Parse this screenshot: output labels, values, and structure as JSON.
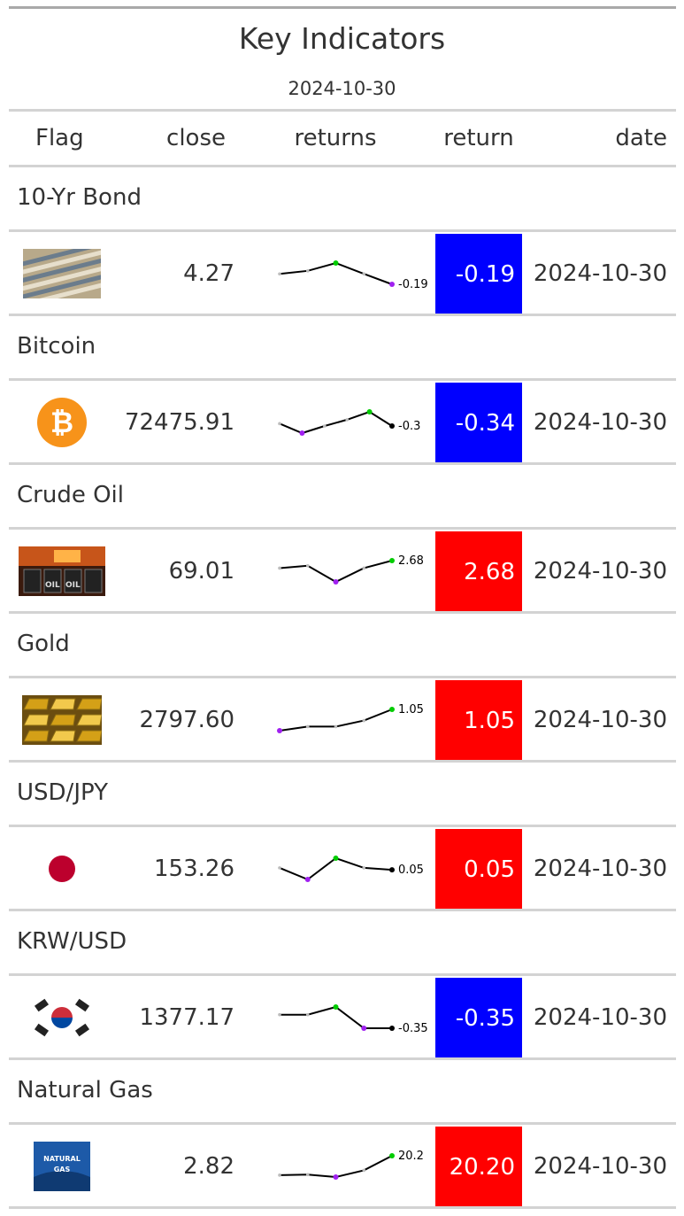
{
  "title": "Key Indicators",
  "subtitle": "2024-10-30",
  "columns": [
    "Flag",
    "close",
    "returns",
    "return",
    "date"
  ],
  "colors": {
    "positive": "#ff0000",
    "negative": "#0000ff",
    "min_point": "#a020f0",
    "max_point": "#00cc00",
    "last_point": "#000000"
  },
  "chart_data": {
    "type": "table",
    "rows": [
      {
        "group": "10-Yr Bond",
        "flag_icon": "bond-certificates-icon",
        "close": "4.27",
        "returns": [
          0.05,
          0.12,
          0.3,
          0.05,
          -0.19
        ],
        "returns_label": "-0.19",
        "return": "-0.19",
        "date": "2024-10-30"
      },
      {
        "group": "Bitcoin",
        "flag_icon": "bitcoin-icon",
        "close": "72475.91",
        "returns": [
          0.0,
          -1.2,
          -0.3,
          0.5,
          1.5,
          -0.3
        ],
        "returns_label": "-0.3",
        "return": "-0.34",
        "date": "2024-10-30"
      },
      {
        "group": "Crude Oil",
        "flag_icon": "oil-barrels-icon",
        "close": "69.01",
        "returns": [
          0.5,
          1.2,
          -3.5,
          0.5,
          2.68
        ],
        "returns_label": "2.68",
        "return": "2.68",
        "date": "2024-10-30"
      },
      {
        "group": "Gold",
        "flag_icon": "gold-bars-icon",
        "close": "2797.60",
        "returns": [
          0.0,
          0.2,
          0.2,
          0.5,
          1.05
        ],
        "returns_label": "1.05",
        "return": "1.05",
        "date": "2024-10-30"
      },
      {
        "group": "USD/JPY",
        "flag_icon": "japan-flag-icon",
        "close": "153.26",
        "returns": [
          0.1,
          -0.2,
          0.35,
          0.1,
          0.05
        ],
        "returns_label": "0.05",
        "return": "0.05",
        "date": "2024-10-30"
      },
      {
        "group": "KRW/USD",
        "flag_icon": "korea-flag-icon",
        "close": "1377.17",
        "returns": [
          0.0,
          0.0,
          0.2,
          -0.35,
          -0.35
        ],
        "returns_label": "-0.35",
        "return": "-0.35",
        "date": "2024-10-30"
      },
      {
        "group": "Natural Gas",
        "flag_icon": "natural-gas-icon",
        "close": "2.82",
        "returns": [
          0.0,
          0.5,
          -2.0,
          5.0,
          20.2
        ],
        "returns_label": "20.2",
        "return": "20.20",
        "date": "2024-10-30"
      }
    ]
  },
  "natural_gas_logo": {
    "line1": "NATURAL",
    "line2": "GAS"
  },
  "oil_logo": {
    "text": "OIL"
  }
}
